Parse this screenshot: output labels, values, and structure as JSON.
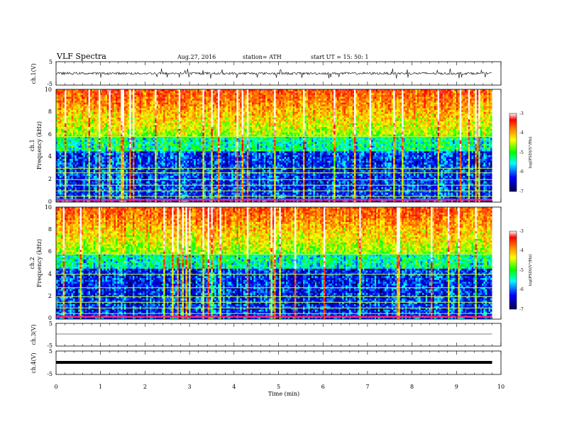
{
  "header": {
    "title": "VLF  Spectra",
    "date": "Aug.27, 2016",
    "station": "station= ATH",
    "start_ut": "start  UT  =    15: 50: 1"
  },
  "chart_data": [
    {
      "id": "ch1-waveform",
      "type": "line",
      "ylabel": "ch.1(V)",
      "ylim": [
        -5,
        5
      ],
      "y_ticks": [
        "5",
        "-5"
      ],
      "description_values": {
        "baseline_V": 0,
        "typical_amplitude_V": 0.5,
        "spike_amplitude_V": 2.2
      }
    },
    {
      "id": "ch1-spectrogram",
      "type": "heatmap",
      "ylabel_line1": "ch.1",
      "ylabel_line2": "Frequency  (kHz)",
      "ylim": [
        0,
        10
      ],
      "y_ticks": [
        "0",
        "2",
        "4",
        "6",
        "8",
        "10"
      ],
      "colorbar": {
        "label": "log(PSD)(V²/Hz)",
        "range": [
          -7,
          -3
        ],
        "ticks": [
          "-3",
          "-4",
          "-5",
          "-6",
          "-7"
        ]
      },
      "bands_kHz": [
        0.2,
        0.5,
        1.0,
        1.5,
        2.0,
        2.6,
        3.0,
        5.8
      ],
      "threshold_kHz": 5.8
    },
    {
      "id": "ch2-spectrogram",
      "type": "heatmap",
      "ylabel_line1": "ch.2",
      "ylabel_line2": "Frequency  (kHz)",
      "ylim": [
        0,
        10
      ],
      "y_ticks": [
        "0",
        "2",
        "4",
        "6",
        "8",
        "10"
      ],
      "colorbar": {
        "label": "log(PSD)(V²/Hz)",
        "range": [
          -7,
          -3
        ],
        "ticks": [
          "-3",
          "-4",
          "-5",
          "-6",
          "-7"
        ]
      },
      "bands_kHz": [
        0.2,
        0.5,
        1.0,
        1.5,
        2.0,
        2.8,
        4.0,
        5.8
      ],
      "threshold_kHz": 5.8
    },
    {
      "id": "ch3-waveform",
      "type": "line",
      "ylabel": "ch.3(V)",
      "ylim": [
        -5,
        5
      ],
      "y_ticks": [
        "5",
        "-5"
      ],
      "description_values": {
        "baseline_V": 0
      }
    },
    {
      "id": "ch4-waveform",
      "type": "line",
      "ylabel": "ch.4(V)",
      "ylim": [
        -5,
        5
      ],
      "y_ticks": [
        "5",
        "-5"
      ],
      "description_values": {
        "baseline_V": 0
      }
    }
  ],
  "x_axis": {
    "xlabel": "Time  (min)",
    "xlim": [
      0,
      10
    ],
    "ticks": [
      "0",
      "1",
      "2",
      "3",
      "4",
      "5",
      "6",
      "7",
      "8",
      "9",
      "10"
    ],
    "data_end_min": 9.8
  },
  "colors": {
    "colormap": [
      "#000050",
      "#0000ff",
      "#00ffff",
      "#00ff00",
      "#ffff00",
      "#ff8000",
      "#ff0000",
      "#ffffff"
    ],
    "band_line": "#c8ff40",
    "trace": "#000000"
  }
}
